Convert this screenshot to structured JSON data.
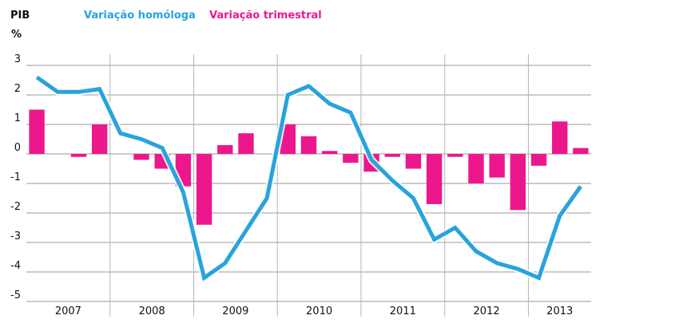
{
  "chart_data": {
    "type": "bar+line",
    "title": "PIB",
    "ylabel": "%",
    "ylim": [
      -5,
      3
    ],
    "y_ticks": [
      "3",
      "2",
      "1",
      "0",
      "-1",
      "-2",
      "-3",
      "-4",
      "-5"
    ],
    "x_labels": [
      "2007",
      "2008",
      "2009",
      "2010",
      "2011",
      "2012",
      "2013"
    ],
    "quarters": [
      "2007Q1",
      "2007Q2",
      "2007Q3",
      "2007Q4",
      "2008Q1",
      "2008Q2",
      "2008Q3",
      "2008Q4",
      "2009Q1",
      "2009Q2",
      "2009Q3",
      "2009Q4",
      "2010Q1",
      "2010Q2",
      "2010Q3",
      "2010Q4",
      "2011Q1",
      "2011Q2",
      "2011Q3",
      "2011Q4",
      "2012Q1",
      "2012Q2",
      "2012Q3",
      "2012Q4",
      "2013Q1",
      "2013Q2",
      "2013Q3"
    ],
    "grid": true,
    "legend_position": "top-left",
    "series": [
      {
        "name": "Variação homóloga",
        "kind": "line",
        "color": "#29a3dc",
        "values": [
          2.6,
          2.1,
          2.1,
          2.2,
          0.7,
          0.5,
          0.2,
          -1.3,
          -4.2,
          -3.7,
          -2.6,
          -1.5,
          2.0,
          2.3,
          1.7,
          1.4,
          -0.2,
          -0.9,
          -1.5,
          -2.9,
          -2.5,
          -3.3,
          -3.7,
          -3.9,
          -4.2,
          -2.1,
          -1.1
        ]
      },
      {
        "name": "Variação trimestral",
        "kind": "bar",
        "color": "#ec178c",
        "values": [
          1.5,
          0.0,
          -0.1,
          1.0,
          0.0,
          -0.2,
          -0.5,
          -1.1,
          -2.4,
          0.3,
          0.7,
          0.0,
          1.0,
          0.6,
          0.1,
          -0.3,
          -0.6,
          -0.1,
          -0.5,
          -1.7,
          -0.1,
          -1.0,
          -0.8,
          -1.9,
          -0.4,
          1.1,
          0.2
        ]
      }
    ]
  }
}
